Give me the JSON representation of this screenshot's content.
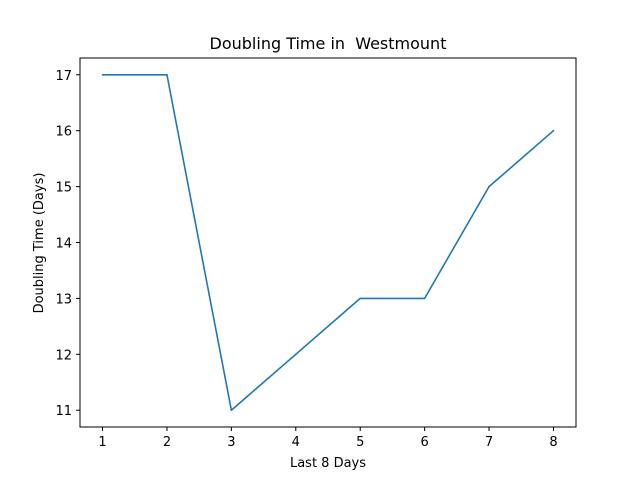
{
  "chart_data": {
    "type": "line",
    "title": "Doubling Time in  Westmount",
    "xlabel": "Last 8 Days",
    "ylabel": "Doubling Time (Days)",
    "x": [
      1,
      2,
      3,
      4,
      5,
      6,
      7,
      8
    ],
    "series": [
      {
        "values": [
          17,
          17,
          11,
          12,
          13,
          13,
          15,
          16
        ],
        "color": "#1f77b4"
      }
    ],
    "xticks": [
      1,
      2,
      3,
      4,
      5,
      6,
      7,
      8
    ],
    "yticks": [
      11,
      12,
      13,
      14,
      15,
      16,
      17
    ],
    "xlim": [
      0.65,
      8.35
    ],
    "ylim": [
      10.7,
      17.3
    ],
    "grid": false,
    "legend": "none"
  }
}
